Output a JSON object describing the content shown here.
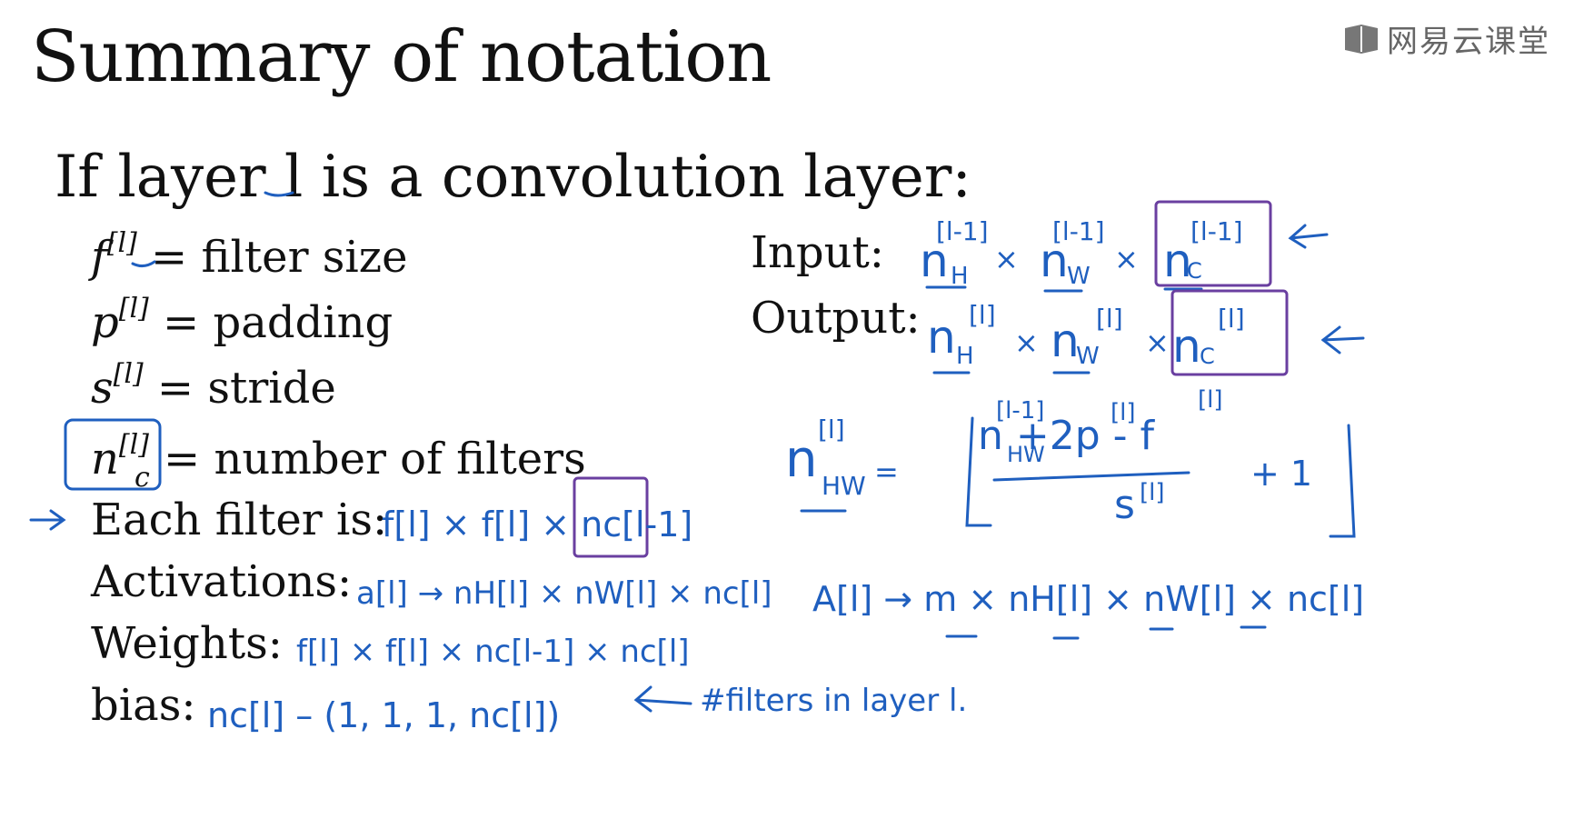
{
  "slide": {
    "title": "Summary of notation",
    "subtitle": "If layer l is a convolution layer:",
    "logo_text": "网易云课堂",
    "left_items": [
      {
        "symbol": "f",
        "sup": "[l]",
        "rhs": "= filter size"
      },
      {
        "symbol": "p",
        "sup": "[l]",
        "rhs": "= padding"
      },
      {
        "symbol": "s",
        "sup": "[l]",
        "rhs": "= stride"
      },
      {
        "symbol": "n",
        "sub": "c",
        "sup": "[l]",
        "rhs": "= number of filters"
      }
    ],
    "right_labels": {
      "input": "Input:",
      "output": "Output:"
    },
    "lower_labels": {
      "each_filter": "Each filter is:",
      "activations": "Activations:",
      "weights": "Weights:",
      "bias": "bias:"
    }
  },
  "handwriting": {
    "input_dims": [
      "n",
      "H",
      "[l-1]",
      "×",
      "n",
      "W",
      "[l-1]",
      "×",
      "n",
      "C",
      "[l-1]"
    ],
    "output_dims": [
      "n",
      "H",
      "[l]",
      "×",
      "n",
      "W",
      "[l]",
      "×",
      "n",
      "C",
      "[l]"
    ],
    "formula": {
      "lhs": "n",
      "lhs_sub": "HW",
      "lhs_sup": "[l]",
      "eq": "=",
      "numerator": "n   +2p    - f",
      "num_sub": "HW",
      "num_sup1": "[l-1]",
      "num_sup2": "[l]",
      "num_sup3": "[l]",
      "denominator": "s",
      "den_sup": "[l]",
      "plus_one": "+ 1"
    },
    "each_filter": "f[l] × f[l] × nc[l-1]",
    "activations": "a[l] → nH[l] × nW[l] × nc[l]",
    "activations_big": "A[l] → m × nH[l] × nW[l] × nc[l]",
    "weights": "f[l] × f[l] × nc[l-1] × nc[l]",
    "bias": "nc[l] – (1, 1, 1, nc[l])",
    "bias_note": "#filters in layer l.",
    "colors": {
      "ink": "#1f5fbf",
      "box": "#6a3fa0",
      "text": "#111111"
    }
  }
}
